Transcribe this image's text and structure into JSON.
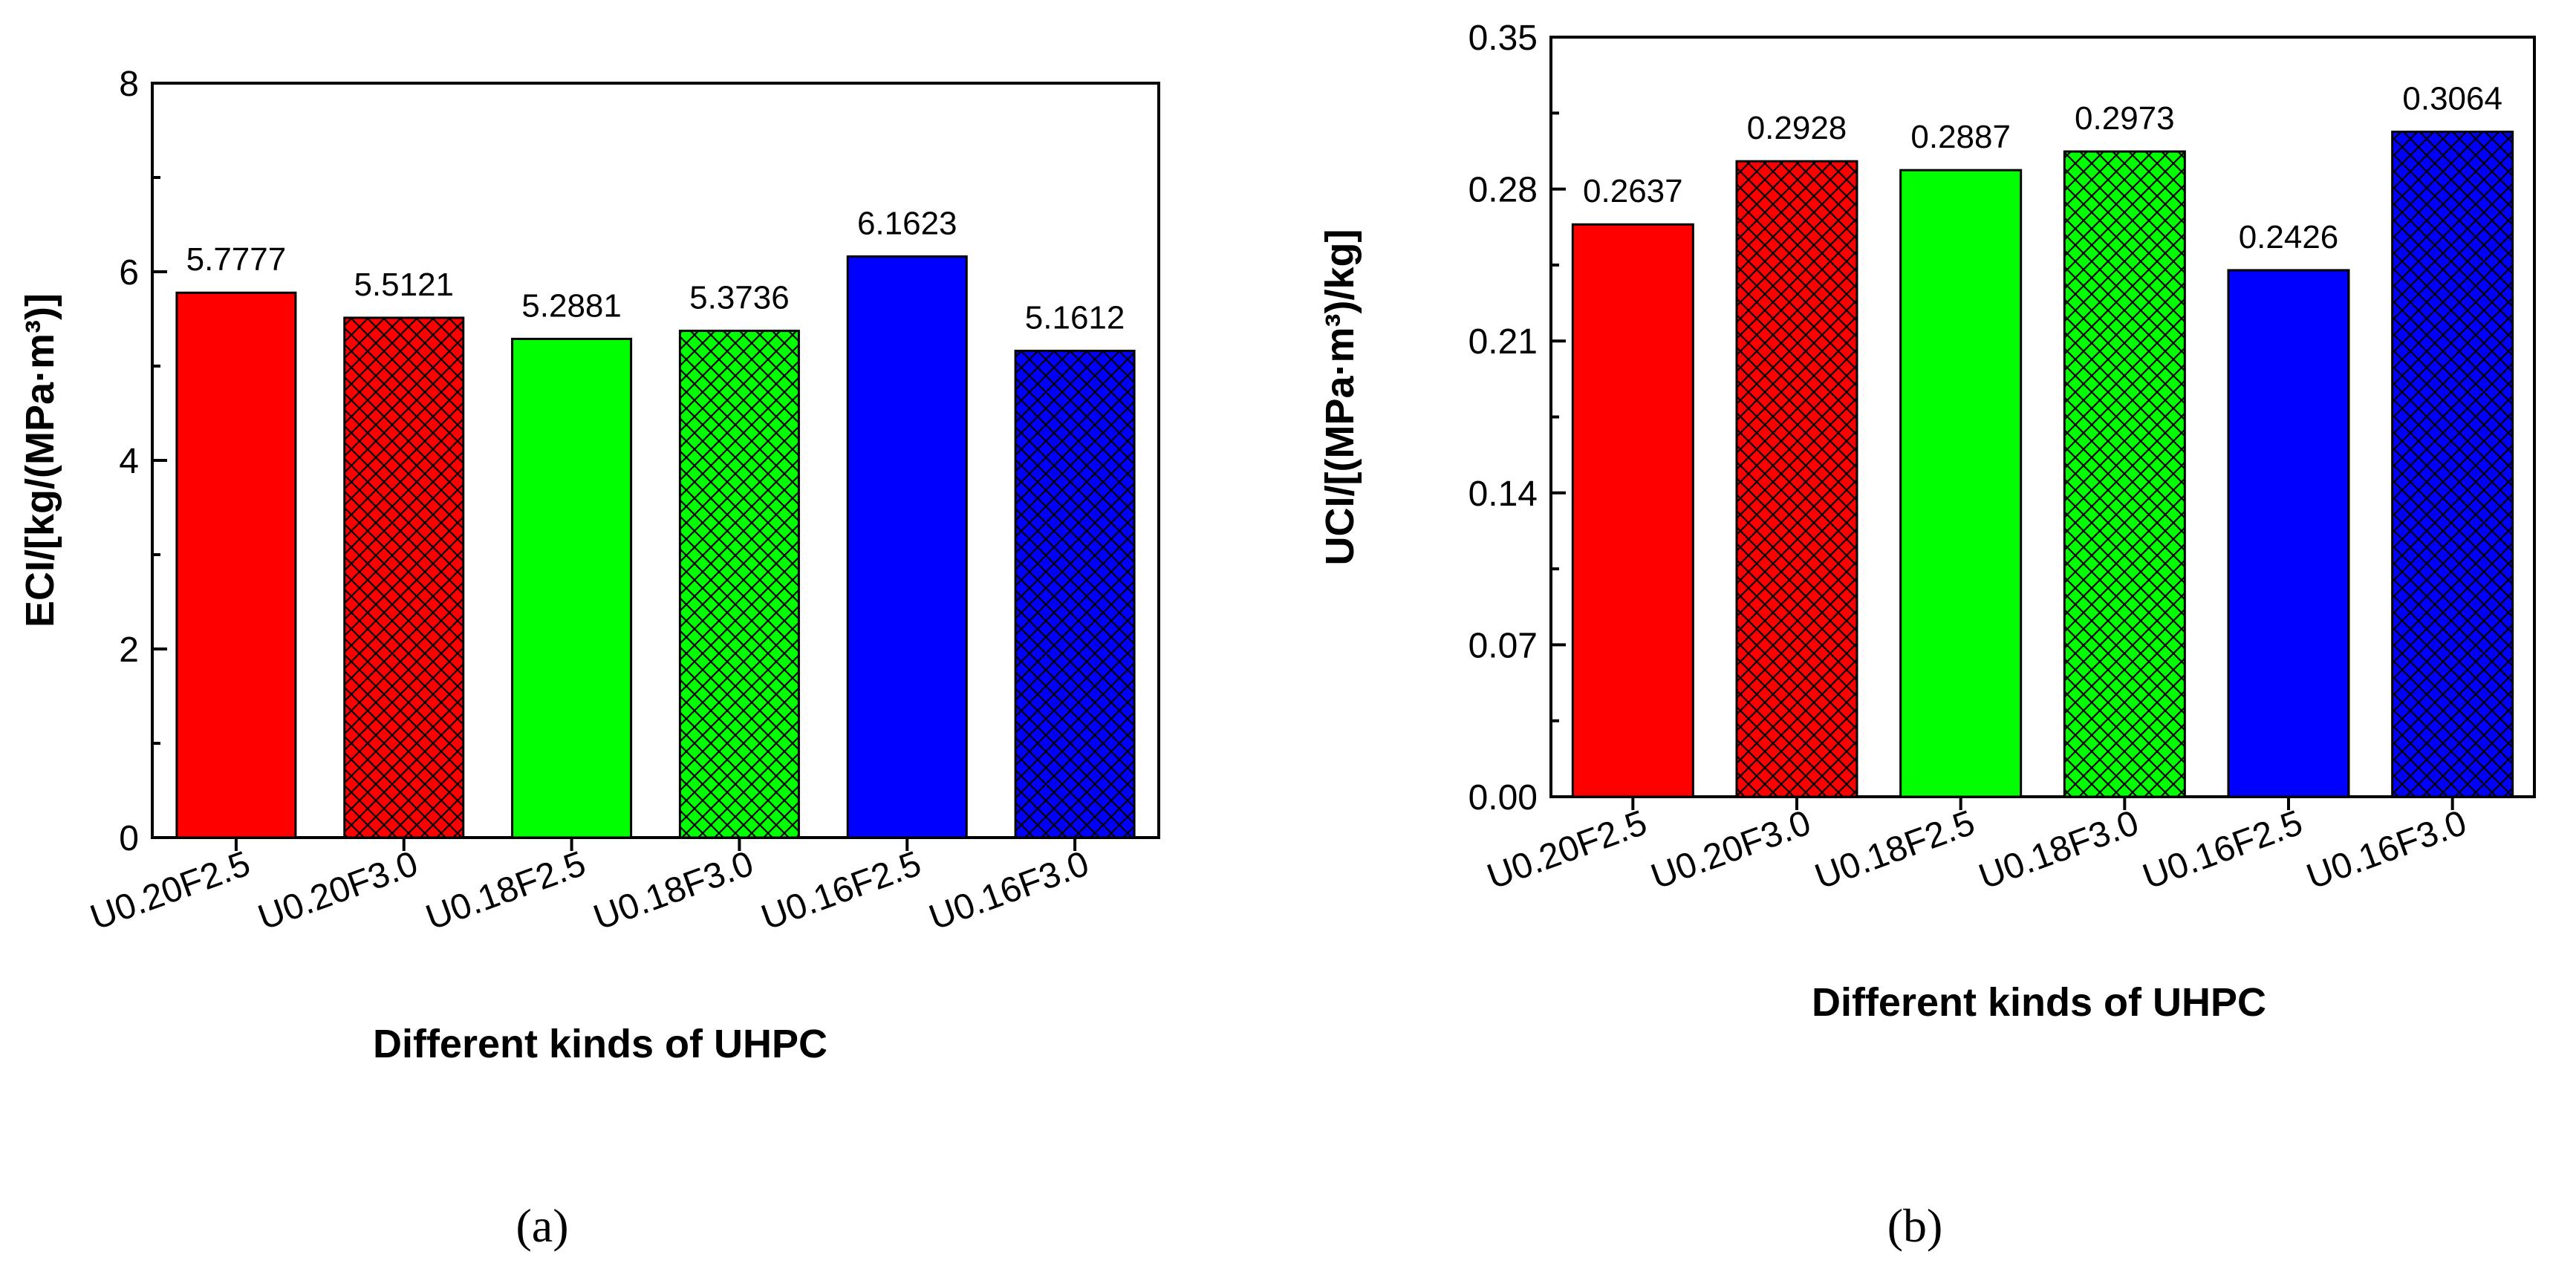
{
  "chart_data": [
    {
      "type": "bar",
      "panel_label": "(a)",
      "categories": [
        "U0.20F2.5",
        "U0.20F3.0",
        "U0.18F2.5",
        "U0.18F3.0",
        "U0.16F2.5",
        "U0.16F3.0"
      ],
      "values": [
        5.7777,
        5.5121,
        5.2881,
        5.3736,
        6.1623,
        5.1612
      ],
      "data_labels": [
        "5.7777",
        "5.5121",
        "5.2881",
        "5.3736",
        "6.1623",
        "5.1612"
      ],
      "bar_colors": [
        "#ff0000",
        "#ff0000",
        "#00ff00",
        "#00ff00",
        "#0000ff",
        "#0000ff"
      ],
      "bar_patterns": [
        "solid",
        "crosshatch",
        "solid",
        "crosshatch",
        "solid",
        "crosshatch"
      ],
      "xlabel": "Different kinds of UHPC",
      "ylabel": "ECI/[kg/(MPa·m³)]",
      "ylim": [
        0,
        8
      ],
      "yticks": [
        0,
        2,
        4,
        6,
        8
      ],
      "ytick_labels": [
        "0",
        "2",
        "4",
        "6",
        "8"
      ]
    },
    {
      "type": "bar",
      "panel_label": "(b)",
      "categories": [
        "U0.20F2.5",
        "U0.20F3.0",
        "U0.18F2.5",
        "U0.18F3.0",
        "U0.16F2.5",
        "U0.16F3.0"
      ],
      "values": [
        0.2637,
        0.2928,
        0.2887,
        0.2973,
        0.2426,
        0.3064
      ],
      "data_labels": [
        "0.2637",
        "0.2928",
        "0.2887",
        "0.2973",
        "0.2426",
        "0.3064"
      ],
      "bar_colors": [
        "#ff0000",
        "#ff0000",
        "#00ff00",
        "#00ff00",
        "#0000ff",
        "#0000ff"
      ],
      "bar_patterns": [
        "solid",
        "crosshatch",
        "solid",
        "crosshatch",
        "solid",
        "crosshatch"
      ],
      "xlabel": "Different kinds of UHPC",
      "ylabel": "UCI/[(MPa·m³)/kg]",
      "ylim": [
        0,
        0.35
      ],
      "yticks": [
        0,
        0.07,
        0.14,
        0.21,
        0.28,
        0.35
      ],
      "ytick_labels": [
        "0.00",
        "0.07",
        "0.14",
        "0.21",
        "0.28",
        "0.35"
      ]
    }
  ]
}
